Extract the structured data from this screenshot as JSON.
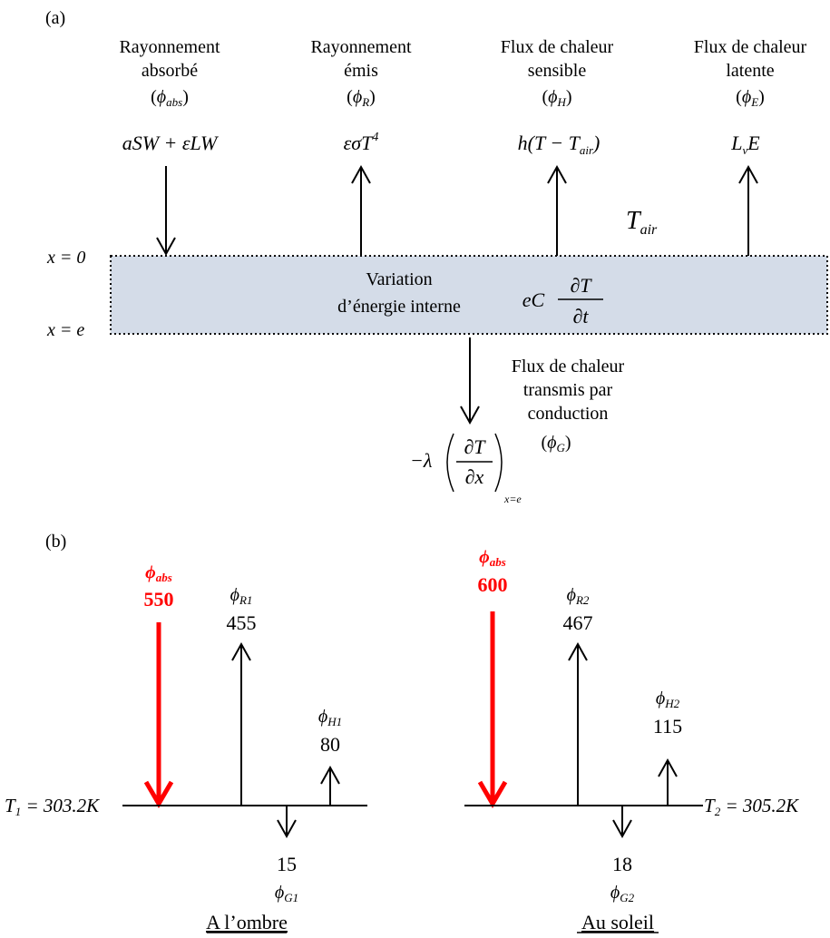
{
  "panel_a": {
    "label": "(a)",
    "fluxes": [
      {
        "line1": "Rayonnement",
        "line2": "absorbé",
        "sym_base": "ϕ",
        "sym_sub": "abs",
        "formula": "aSW + εLW"
      },
      {
        "line1": "Rayonnement",
        "line2": "émis",
        "sym_base": "ϕ",
        "sym_sub": "R",
        "formula_base": "εσT",
        "formula_sup": "4"
      },
      {
        "line1": "Flux de chaleur",
        "line2": "sensible",
        "sym_base": "ϕ",
        "sym_sub": "H",
        "formula_pre": "h(T − T",
        "formula_sub": "air",
        "formula_post": ")"
      },
      {
        "line1": "Flux de chaleur",
        "line2": "latente",
        "sym_base": "ϕ",
        "sym_sub": "E",
        "formula_pre": "L",
        "formula_sub": "v",
        "formula_post": "E"
      }
    ],
    "tair_base": "T",
    "tair_sub": "air",
    "x0_label": "x = 0",
    "xe_label": "x = e",
    "box_line1": "Variation",
    "box_line2": "d’énergie interne",
    "box_formula_pre": "eC",
    "box_formula_num": "∂T",
    "box_formula_den": "∂t",
    "conduction_line1": "Flux de chaleur",
    "conduction_line2": "transmis par",
    "conduction_line3": "conduction",
    "conduction_sym_base": "ϕ",
    "conduction_sym_sub": "G",
    "conduction_formula_pre": "−λ",
    "conduction_formula_num": "∂T",
    "conduction_formula_den": "∂x",
    "conduction_formula_sub": "x=e"
  },
  "panel_b": {
    "label": "(b)",
    "left": {
      "abs_base": "ϕ",
      "abs_sub": "abs",
      "abs_value": "550",
      "r_base": "ϕ",
      "r_sub": "R1",
      "r_value": "455",
      "h_base": "ϕ",
      "h_sub": "H1",
      "h_value": "80",
      "g_value": "15",
      "g_base": "ϕ",
      "g_sub": "G1",
      "temp_base": "T",
      "temp_sub": "1",
      "temp_rest": " = 303.2K",
      "caption": "A l’ombre"
    },
    "right": {
      "abs_base": "ϕ",
      "abs_sub": "abs",
      "abs_value": "600",
      "r_base": "ϕ",
      "r_sub": "R2",
      "r_value": "467",
      "h_base": "ϕ",
      "h_sub": "H2",
      "h_value": "115",
      "g_value": "18",
      "g_base": "ϕ",
      "g_sub": "G2",
      "temp_base": "T",
      "temp_sub": "2",
      "temp_rest": " = 305.2K",
      "caption": "Au soleil"
    }
  },
  "colors": {
    "accent": "#ff0000",
    "layer_fill": "#d4dce8"
  }
}
